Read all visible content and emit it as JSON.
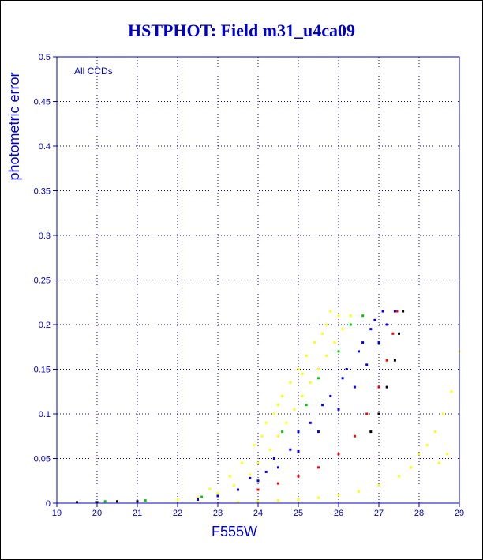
{
  "page": {
    "title": "HSTPHOT: Field m31_u4ca09"
  },
  "colors": {
    "axis": "#0000cc",
    "grid": "#0000cc",
    "points_yellow": "#ffff00",
    "points_blue": "#0000ff",
    "points_red": "#ff0000",
    "points_black": "#000000",
    "points_green": "#00cc00"
  },
  "chart_data": {
    "type": "scatter",
    "title": "HSTPHOT: Field m31_u4ca09",
    "xlabel": "F555W",
    "ylabel": "photometric error",
    "annotation": "All CCDs",
    "xlim": [
      19,
      29
    ],
    "ylim": [
      0,
      0.5
    ],
    "xticks": [
      "19",
      "20",
      "21",
      "22",
      "23",
      "24",
      "25",
      "26",
      "27",
      "28",
      "29"
    ],
    "yticks": [
      "0",
      "0.05",
      "0.1",
      "0.15",
      "0.2",
      "0.25",
      "0.3",
      "0.35",
      "0.4",
      "0.45",
      "0.5"
    ],
    "grid": true,
    "series": [
      {
        "color": "#ffff00",
        "description": "broad upper spread",
        "points": [
          [
            22.0,
            0.004
          ],
          [
            22.5,
            0.006
          ],
          [
            23.0,
            0.011
          ],
          [
            23.4,
            0.02
          ],
          [
            23.8,
            0.032
          ],
          [
            24.0,
            0.045
          ],
          [
            24.3,
            0.06
          ],
          [
            24.5,
            0.075
          ],
          [
            24.7,
            0.09
          ],
          [
            24.9,
            0.105
          ],
          [
            25.1,
            0.12
          ],
          [
            25.3,
            0.135
          ],
          [
            25.5,
            0.15
          ],
          [
            25.7,
            0.165
          ],
          [
            25.9,
            0.18
          ],
          [
            26.1,
            0.195
          ],
          [
            26.3,
            0.21
          ],
          [
            24.2,
            0.09
          ],
          [
            24.6,
            0.12
          ],
          [
            25.0,
            0.15
          ],
          [
            25.4,
            0.18
          ],
          [
            25.7,
            0.2
          ],
          [
            23.6,
            0.045
          ],
          [
            23.9,
            0.065
          ],
          [
            24.4,
            0.1
          ],
          [
            24.8,
            0.135
          ],
          [
            25.2,
            0.165
          ],
          [
            25.6,
            0.19
          ],
          [
            26.0,
            0.21
          ],
          [
            24.1,
            0.075
          ],
          [
            23.3,
            0.03
          ],
          [
            22.8,
            0.016
          ],
          [
            25.8,
            0.215
          ],
          [
            24.5,
            0.11
          ],
          [
            25.1,
            0.145
          ]
        ]
      },
      {
        "color": "#0000ff",
        "description": "dense main band",
        "points": [
          [
            22.5,
            0.004
          ],
          [
            23.0,
            0.008
          ],
          [
            23.5,
            0.015
          ],
          [
            24.0,
            0.025
          ],
          [
            24.5,
            0.04
          ],
          [
            25.0,
            0.058
          ],
          [
            25.5,
            0.08
          ],
          [
            26.0,
            0.105
          ],
          [
            26.4,
            0.13
          ],
          [
            26.7,
            0.155
          ],
          [
            27.0,
            0.18
          ],
          [
            27.2,
            0.2
          ],
          [
            27.4,
            0.215
          ],
          [
            24.2,
            0.035
          ],
          [
            24.8,
            0.06
          ],
          [
            25.3,
            0.09
          ],
          [
            25.8,
            0.12
          ],
          [
            26.2,
            0.15
          ],
          [
            26.6,
            0.18
          ],
          [
            26.9,
            0.205
          ],
          [
            23.8,
            0.028
          ],
          [
            24.4,
            0.05
          ],
          [
            25.0,
            0.08
          ],
          [
            25.6,
            0.11
          ],
          [
            26.1,
            0.14
          ],
          [
            26.5,
            0.17
          ],
          [
            26.8,
            0.195
          ],
          [
            27.1,
            0.215
          ]
        ]
      },
      {
        "color": "#ff0000",
        "description": "lower edge of main band",
        "points": [
          [
            24.0,
            0.015
          ],
          [
            24.5,
            0.022
          ],
          [
            25.0,
            0.03
          ],
          [
            25.5,
            0.04
          ],
          [
            26.0,
            0.055
          ],
          [
            26.4,
            0.075
          ],
          [
            26.7,
            0.1
          ],
          [
            27.0,
            0.13
          ],
          [
            27.2,
            0.16
          ],
          [
            27.35,
            0.19
          ],
          [
            27.45,
            0.215
          ]
        ]
      },
      {
        "color": "#000000",
        "description": "outer envelope",
        "points": [
          [
            19.5,
            0.001
          ],
          [
            20.0,
            0.001
          ],
          [
            20.5,
            0.002
          ],
          [
            21.0,
            0.002
          ],
          [
            26.8,
            0.08
          ],
          [
            27.0,
            0.1
          ],
          [
            27.2,
            0.13
          ],
          [
            27.4,
            0.16
          ],
          [
            27.5,
            0.19
          ],
          [
            27.6,
            0.215
          ]
        ]
      },
      {
        "color": "#00cc00",
        "description": "scattered points",
        "points": [
          [
            20.2,
            0.002
          ],
          [
            21.2,
            0.003
          ],
          [
            22.6,
            0.007
          ],
          [
            24.6,
            0.08
          ],
          [
            25.2,
            0.11
          ],
          [
            25.5,
            0.14
          ],
          [
            26.0,
            0.17
          ],
          [
            26.3,
            0.2
          ],
          [
            26.6,
            0.21
          ]
        ]
      },
      {
        "color": "#ffff00",
        "description": "lower sequence",
        "points": [
          [
            23.5,
            0.001
          ],
          [
            24.0,
            0.002
          ],
          [
            24.5,
            0.003
          ],
          [
            25.0,
            0.004
          ],
          [
            25.5,
            0.006
          ],
          [
            26.0,
            0.009
          ],
          [
            26.5,
            0.013
          ],
          [
            27.0,
            0.02
          ],
          [
            27.5,
            0.03
          ],
          [
            27.8,
            0.04
          ],
          [
            28.0,
            0.055
          ],
          [
            28.2,
            0.065
          ],
          [
            28.4,
            0.08
          ],
          [
            28.6,
            0.1
          ],
          [
            28.8,
            0.125
          ],
          [
            29.0,
            0.17
          ],
          [
            28.5,
            0.045
          ],
          [
            28.7,
            0.055
          ]
        ]
      }
    ]
  }
}
